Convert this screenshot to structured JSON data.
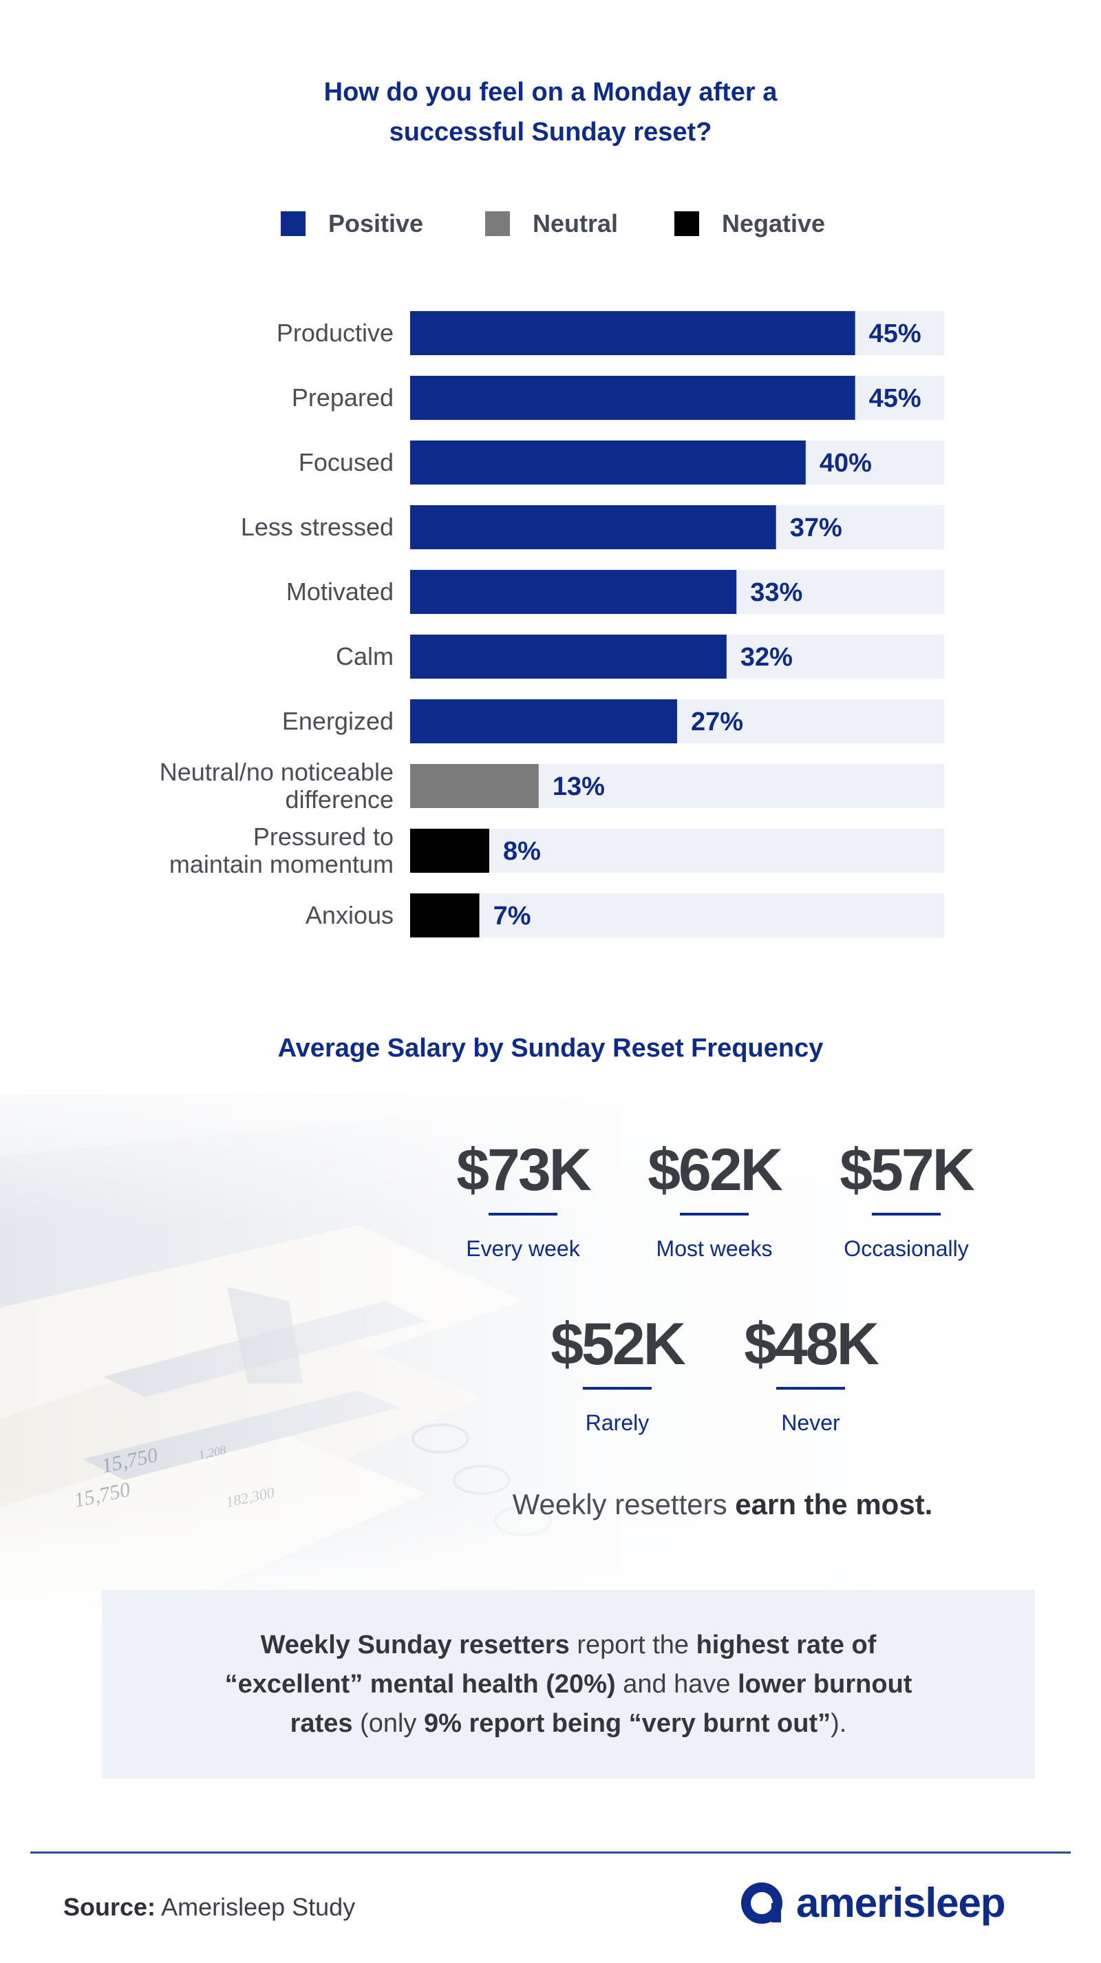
{
  "header": {
    "title_line1": "How do you feel on a Monday after a",
    "title_line2": "successful Sunday reset?"
  },
  "legend": [
    {
      "label": "Positive",
      "color": "#0d2b8a"
    },
    {
      "label": "Neutral",
      "color": "#7b7b7b"
    },
    {
      "label": "Negative",
      "color": "#000000"
    }
  ],
  "chart_data": {
    "type": "bar",
    "orientation": "horizontal",
    "title": "How do you feel on a Monday after a successful Sunday reset?",
    "categories": [
      "Productive",
      "Prepared",
      "Focused",
      "Less stressed",
      "Motivated",
      "Calm",
      "Energized",
      "Neutral/no noticeable difference",
      "Pressured to maintain momentum",
      "Anxious"
    ],
    "label_lines": [
      [
        "Productive"
      ],
      [
        "Prepared"
      ],
      [
        "Focused"
      ],
      [
        "Less stressed"
      ],
      [
        "Motivated"
      ],
      [
        "Calm"
      ],
      [
        "Energized"
      ],
      [
        "Neutral/no noticeable",
        "difference"
      ],
      [
        "Pressured to",
        "maintain momentum"
      ],
      [
        "Anxious"
      ]
    ],
    "values": [
      45,
      45,
      40,
      37,
      33,
      32,
      27,
      13,
      8,
      7
    ],
    "value_labels": [
      "45%",
      "45%",
      "40%",
      "37%",
      "33%",
      "32%",
      "27%",
      "13%",
      "8%",
      "7%"
    ],
    "sentiment": [
      "Positive",
      "Positive",
      "Positive",
      "Positive",
      "Positive",
      "Positive",
      "Positive",
      "Neutral",
      "Negative",
      "Negative"
    ],
    "xlim": [
      0,
      54
    ],
    "xlabel": "",
    "ylabel": "",
    "colors": {
      "Positive": "#0d2b8a",
      "Neutral": "#7b7b7b",
      "Negative": "#000000",
      "track": "#eef2f8",
      "label": "#0d2b8a",
      "category": "#4a4d55"
    }
  },
  "salary": {
    "title": "Average Salary by Sunday Reset Frequency",
    "stats": [
      {
        "value": "$73K",
        "label": "Every week"
      },
      {
        "value": "$62K",
        "label": "Most weeks"
      },
      {
        "value": "$57K",
        "label": "Occasionally"
      },
      {
        "value": "$52K",
        "label": "Rarely"
      },
      {
        "value": "$48K",
        "label": "Never"
      }
    ],
    "tagline_regular": "Weekly resetters ",
    "tagline_bold": "earn the most."
  },
  "callout": {
    "p1": "Weekly Sunday resetters",
    "p2": " report the ",
    "p3": "highest rate of “excellent” mental health (20%)",
    "p4": " and have ",
    "p5": "lower burnout rates",
    "p6": " (only ",
    "p7": "9% report being “very burnt out”",
    "p8": ")."
  },
  "footer": {
    "source_label": "Source:",
    "source_value": " Amerisleep Study",
    "brand": "amerisleep"
  }
}
